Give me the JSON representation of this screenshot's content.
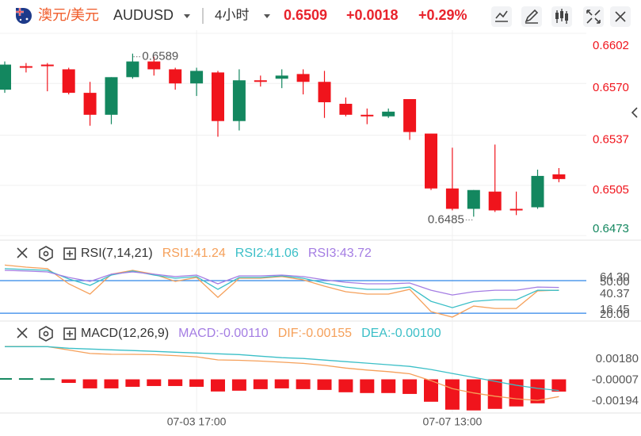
{
  "header": {
    "name": "澳元/美元",
    "symbol": "AUDUSD",
    "interval": "4小时",
    "price": "0.6509",
    "change": "+0.0018",
    "change_pct": "+0.29%"
  },
  "chart_data": [
    {
      "type": "candlestick",
      "categories": [
        null,
        null,
        null,
        null,
        null,
        null,
        null,
        null,
        null,
        "07-03 17:00",
        null,
        null,
        null,
        null,
        null,
        null,
        null,
        null,
        null,
        null,
        null,
        "07-07 13:00",
        null,
        null,
        null,
        null,
        null
      ],
      "open": [
        0.6566,
        0.6581,
        0.6582,
        0.6579,
        0.6564,
        0.655,
        0.6574,
        0.6584,
        0.6579,
        0.657,
        0.6577,
        0.6546,
        0.6572,
        0.6573,
        0.6576,
        0.6571,
        0.6557,
        0.655,
        0.6549,
        0.656,
        0.6538,
        0.6503,
        0.649,
        0.6501,
        0.649,
        0.6491,
        0.6512
      ],
      "high": [
        0.6584,
        0.6583,
        0.6583,
        0.658,
        0.6571,
        0.6574,
        0.6589,
        0.6587,
        0.658,
        0.658,
        0.6578,
        0.6579,
        0.6575,
        0.6579,
        0.6579,
        0.6578,
        0.6561,
        0.6554,
        0.6554,
        0.656,
        0.6538,
        0.6529,
        0.6502,
        0.6531,
        0.6501,
        0.6515,
        0.6516
      ],
      "low": [
        0.6564,
        0.6577,
        0.6565,
        0.6563,
        0.6543,
        0.6544,
        0.6573,
        0.6575,
        0.6566,
        0.6562,
        0.6536,
        0.654,
        0.6568,
        0.6567,
        0.6563,
        0.6548,
        0.6549,
        0.6544,
        0.6548,
        0.6534,
        0.6502,
        0.6489,
        0.6485,
        0.6488,
        0.6486,
        0.649,
        0.6507
      ],
      "close": [
        0.6582,
        0.658,
        0.6581,
        0.6564,
        0.655,
        0.6574,
        0.6584,
        0.6579,
        0.657,
        0.6578,
        0.6546,
        0.6572,
        0.6571,
        0.6575,
        0.6571,
        0.6558,
        0.655,
        0.6549,
        0.6552,
        0.6539,
        0.6503,
        0.649,
        0.6502,
        0.6489,
        0.6489,
        0.6511,
        0.6509
      ],
      "up_color": "#13875f",
      "down_color": "#f0141c",
      "ylim": [
        0.647,
        0.6604
      ],
      "yticks": [
        0.6602,
        {
          "value": 0.657,
          "label": "0.6570"
        },
        0.6537,
        0.6505,
        0.6473
      ],
      "ytick_colors": [
        "#f0141c",
        "#f0141c",
        "#f0141c",
        "#f0141c",
        "#13875f"
      ],
      "grid": true,
      "max_label": "0.6589",
      "min_label": "0.6485"
    },
    {
      "type": "line",
      "title": "RSI(7,14,21)",
      "series": [
        {
          "name": "RSI1:41.24",
          "color": "#f5a05a",
          "values": [
            64.3,
            62.4,
            61.0,
            47.1,
            37.6,
            55.9,
            59.5,
            55.9,
            49.3,
            52.9,
            34.6,
            52.2,
            52.2,
            53.7,
            50.7,
            44.9,
            39.8,
            37.6,
            37.6,
            42.0,
            21.5,
            16.45,
            26.6,
            24.4,
            24.4,
            40.5,
            41.24
          ]
        },
        {
          "name": "RSI2:41.06",
          "color": "#3bbfc7",
          "values": [
            61.0,
            60.2,
            59.5,
            51.5,
            45.6,
            55.1,
            58.8,
            55.1,
            52.2,
            53.7,
            42.0,
            52.9,
            52.9,
            54.4,
            52.2,
            47.8,
            44.1,
            42.0,
            42.0,
            44.1,
            31.0,
            25.1,
            31.0,
            32.4,
            32.4,
            41.2,
            41.06
          ]
        },
        {
          "name": "RSI3:43.72",
          "color": "#a47de3",
          "values": [
            59.5,
            58.8,
            58.0,
            52.9,
            49.3,
            55.9,
            58.0,
            55.9,
            53.7,
            55.1,
            47.1,
            54.4,
            54.4,
            55.1,
            53.7,
            50.7,
            48.5,
            47.1,
            47.1,
            47.8,
            41.2,
            36.8,
            39.8,
            41.2,
            41.2,
            44.1,
            43.72
          ]
        }
      ],
      "ylim": [
        15,
        67.5
      ],
      "yticks": [
        {
          "value": 50,
          "label": "50.00"
        },
        {
          "value": 20,
          "label": "20.00"
        }
      ],
      "level_color": "#2f86e8",
      "value_marks": [
        {
          "value": 64.3,
          "label": "64.30"
        },
        {
          "value": 40.37,
          "label": "40.37"
        },
        {
          "value": 16.45,
          "label": "16.45"
        }
      ]
    },
    {
      "type": "macd",
      "title": "MACD(12,26,9)",
      "histogram": {
        "name": "MACD:-0.00110",
        "color": "#a47de3",
        "values": [
          4e-05,
          3e-05,
          2e-05,
          -0.00032,
          -0.00081,
          -0.00081,
          -0.00067,
          -0.0006,
          -0.0006,
          -0.00067,
          -0.00109,
          -0.00102,
          -0.00088,
          -0.00081,
          -0.00088,
          -0.00095,
          -0.00116,
          -0.00123,
          -0.00123,
          -0.00131,
          -0.00201,
          -0.00272,
          -0.00279,
          -0.00265,
          -0.00243,
          -0.00215,
          -0.0011
        ]
      },
      "series": [
        {
          "name": "DIF:-0.00155",
          "color": "#f5a05a",
          "values": [
            0.00295,
            0.00295,
            0.00294,
            0.00263,
            0.00232,
            0.00225,
            0.00224,
            0.00221,
            0.00213,
            0.00202,
            0.00174,
            0.00171,
            0.00164,
            0.00154,
            0.00143,
            0.00125,
            0.00101,
            0.00083,
            0.00069,
            0.0005,
            -0.00012,
            -0.00083,
            -0.00122,
            -0.00151,
            -0.00175,
            -0.00189,
            -0.00155
          ]
        },
        {
          "name": "DEA:-0.00100",
          "color": "#3bbfc7",
          "values": [
            0.00293,
            0.00293,
            0.00293,
            0.00279,
            0.00272,
            0.00265,
            0.00258,
            0.00251,
            0.00243,
            0.00236,
            0.00229,
            0.00222,
            0.00208,
            0.00194,
            0.00187,
            0.00173,
            0.00159,
            0.00145,
            0.00131,
            0.00116,
            0.00088,
            0.00053,
            0.00018,
            -0.00018,
            -0.00053,
            -0.00081,
            -0.001
          ]
        }
      ],
      "up_color": "#13875f",
      "down_color": "#f0141c",
      "ylim": [
        -0.00295,
        0.00345
      ],
      "yticks": [
        {
          "value": 0.0018,
          "label": "0.00180"
        },
        {
          "value": -7e-05,
          "label": "-0.00007"
        },
        {
          "value": -0.00194,
          "label": "-0.00194"
        }
      ]
    }
  ]
}
